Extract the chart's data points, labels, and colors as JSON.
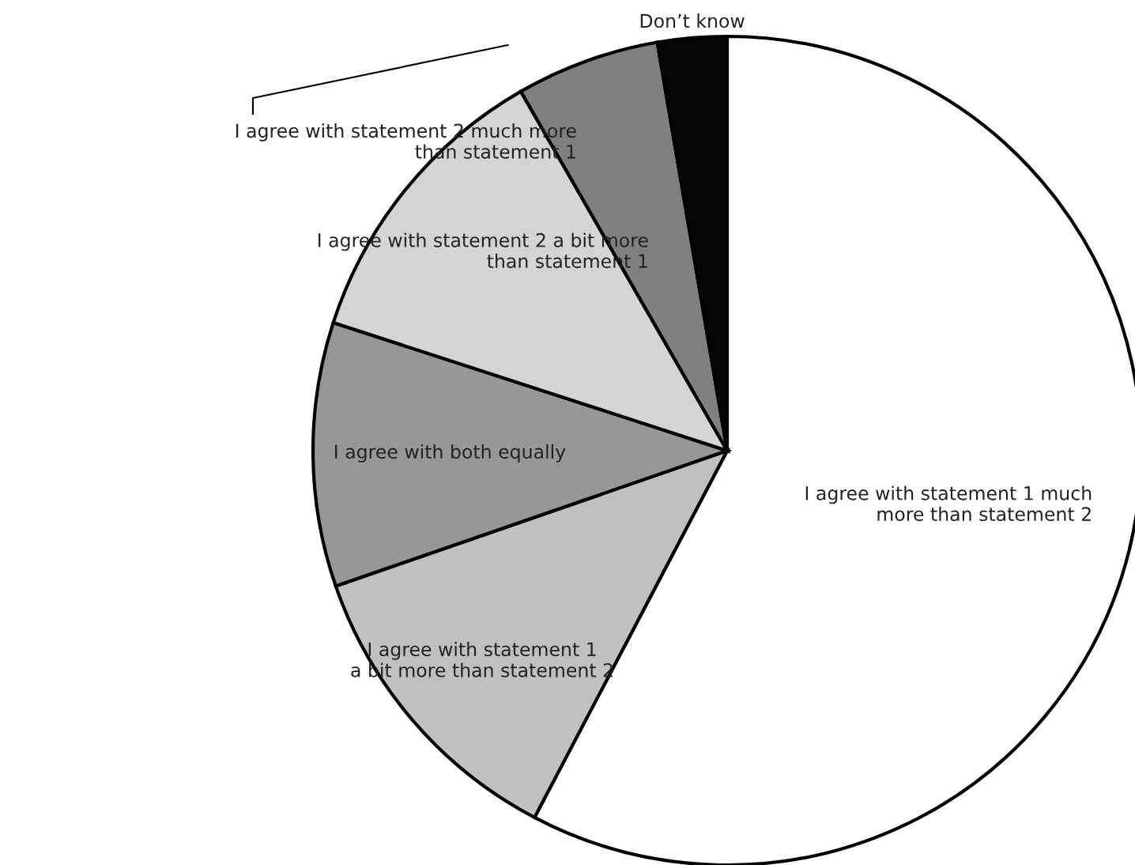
{
  "chart_data": {
    "type": "pie",
    "categories": [
      "I agree with statement 1 much\nmore than statement 2",
      "I agree with statement 1\na bit more than statement 2",
      "I agree with both equally",
      "I agree with statement 2 a bit more\nthan statement 1",
      "I agree with statement 2 much more\nthan statement 1",
      "Don’t know"
    ],
    "values": [
      57.7,
      12.0,
      10.3,
      11.7,
      5.6,
      2.7
    ],
    "colors": [
      "#ffffff",
      "#c0c0c0",
      "#979797",
      "#d4d4d4",
      "#808080",
      "#050505"
    ],
    "legend": false
  }
}
